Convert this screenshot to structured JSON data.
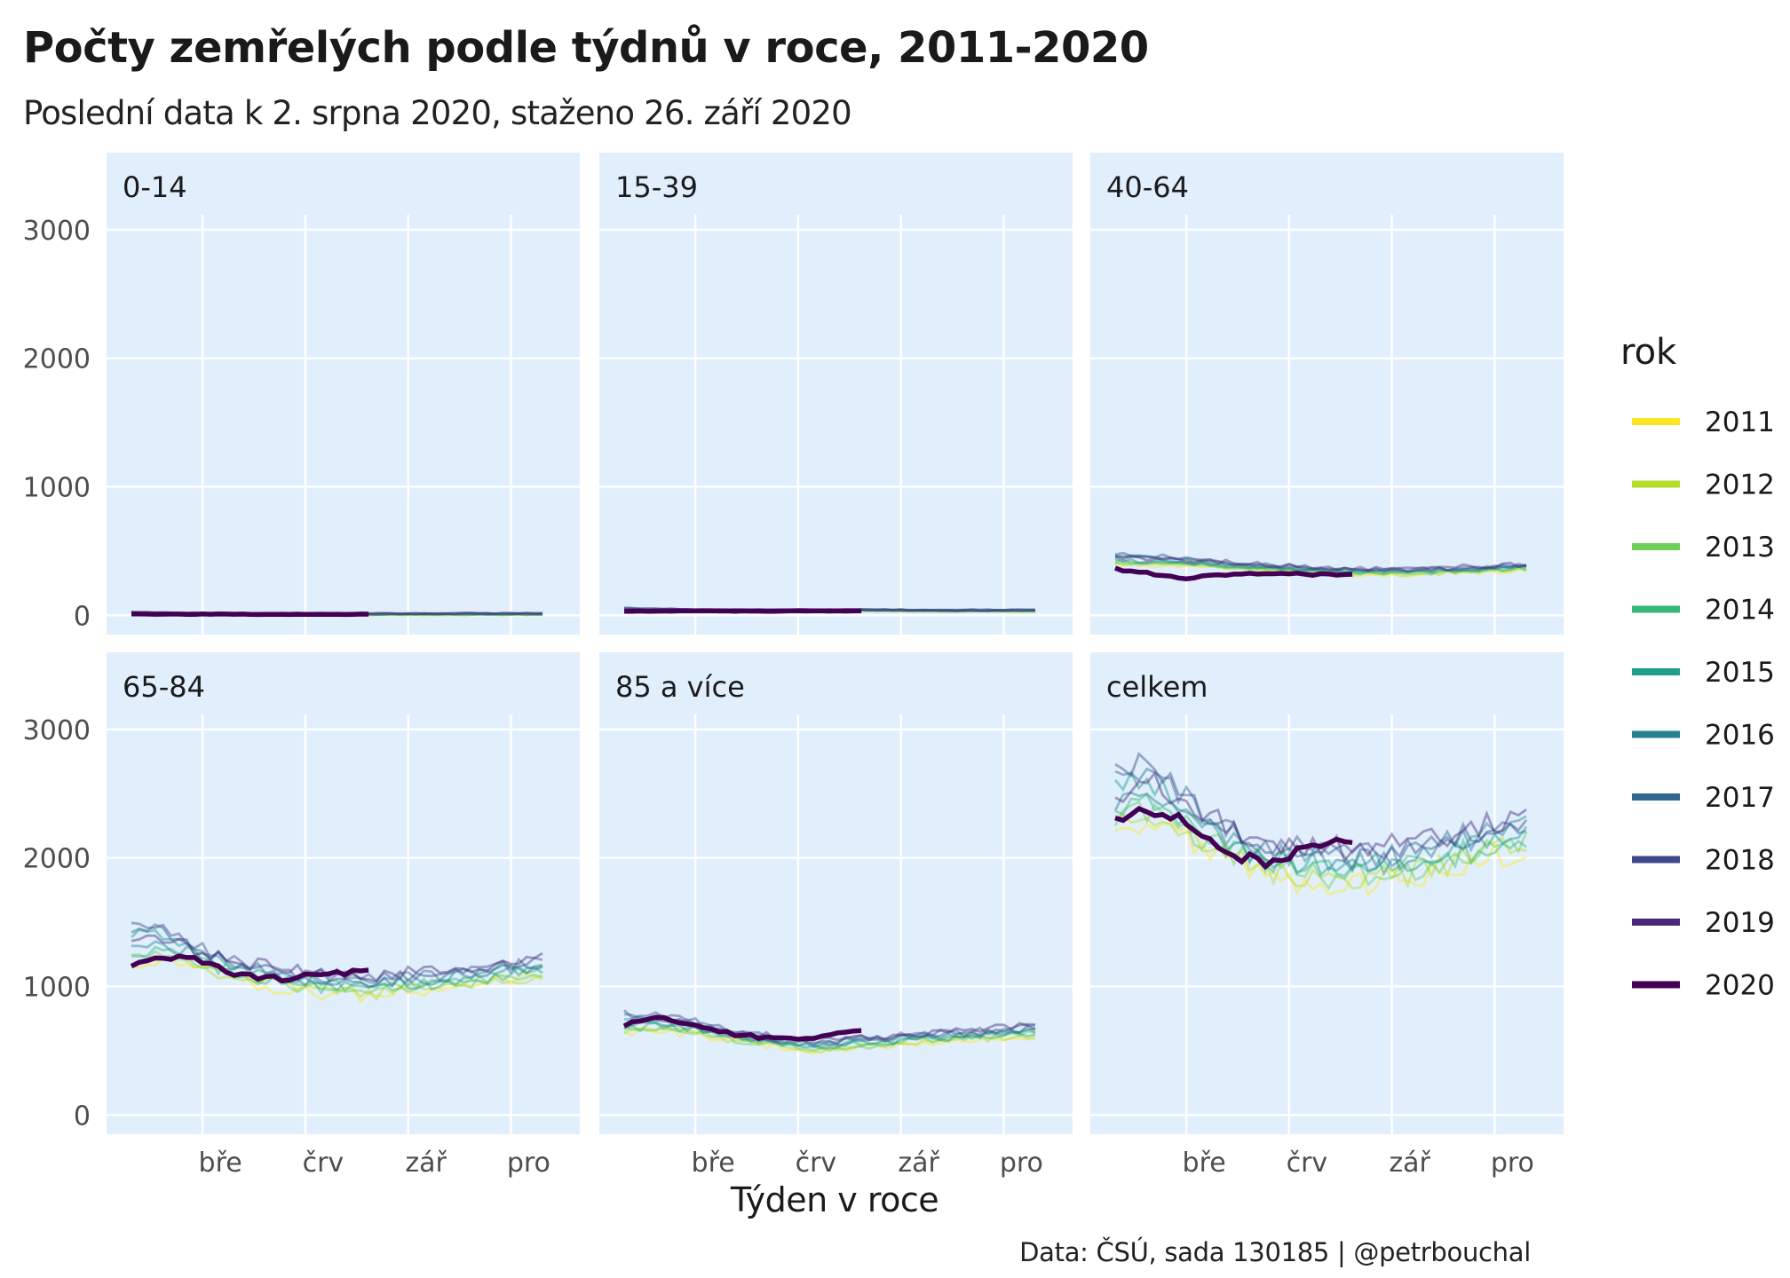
{
  "title": "Počty zemřelých podle týdnů v roce, 2011-2020",
  "subtitle": "Poslední data k 2. srpna 2020, staženo 26. září 2020",
  "caption": "Data: ČSÚ, sada 130185 | @petrbouchal",
  "colors": {
    "panel_bg": "#e1effd",
    "grid": "#ffffff",
    "years": {
      "2011": "#fde725",
      "2012": "#b5de2b",
      "2013": "#6ece58",
      "2014": "#35b779",
      "2015": "#1f9e89",
      "2016": "#26828e",
      "2017": "#31688e",
      "2018": "#3e4989",
      "2019": "#482878",
      "2020": "#440154"
    }
  },
  "chart_data": {
    "type": "line",
    "facet": "age_group",
    "xlabel": "Týden v roce",
    "ylabel": "",
    "x_tick_labels": [
      "bře",
      "črv",
      "zář",
      "pro"
    ],
    "y_ticks": [
      0,
      1000,
      2000,
      3000
    ],
    "ylim": [
      -150,
      3600
    ],
    "legend": {
      "title": "rok",
      "position": "right",
      "entries": [
        "2011",
        "2012",
        "2013",
        "2014",
        "2015",
        "2016",
        "2017",
        "2018",
        "2019",
        "2020"
      ]
    },
    "grid": true,
    "panels": [
      {
        "label": "0-14",
        "x": [
          1,
          10,
          20,
          31,
          40,
          52
        ],
        "series": [
          {
            "name": "2011-2019",
            "values": [
              10,
              10,
              9,
              8,
              9,
              9
            ]
          },
          {
            "name": "2020",
            "values": [
              10,
              9,
              9,
              8
            ]
          }
        ]
      },
      {
        "label": "15-39",
        "x": [
          1,
          10,
          20,
          31,
          40,
          52
        ],
        "series": [
          {
            "name": "2011-2019",
            "values": [
              40,
              38,
              37,
              40,
              36,
              36
            ]
          },
          {
            "name": "2020",
            "values": [
              32,
              33,
              35,
              33
            ]
          }
        ]
      },
      {
        "label": "40-64",
        "x": [
          1,
          10,
          20,
          31,
          40,
          52
        ],
        "series": [
          {
            "name": "2011-2019",
            "values": [
              420,
              410,
              370,
              340,
              340,
              370
            ]
          },
          {
            "name": "2020",
            "values": [
              360,
              330,
              290,
              320
            ]
          }
        ]
      },
      {
        "label": "65-84",
        "x": [
          1,
          5,
          10,
          15,
          20,
          25,
          31,
          40,
          52
        ],
        "series": [
          {
            "name": "2011-2019",
            "values": [
              1250,
              1300,
              1200,
              1120,
              1060,
              1020,
              1000,
              1050,
              1140
            ]
          },
          {
            "name": "2020",
            "values": [
              1180,
              1220,
              1200,
              1080,
              1050,
              1100,
              1120
            ]
          }
        ]
      },
      {
        "label": "85 a více",
        "x": [
          1,
          5,
          10,
          15,
          20,
          25,
          31,
          40,
          52
        ],
        "series": [
          {
            "name": "2011-2019",
            "values": [
              680,
              700,
              670,
              610,
              570,
              540,
              560,
              600,
              650
            ]
          },
          {
            "name": "2020",
            "values": [
              700,
              760,
              700,
              620,
              600,
              600,
              650
            ]
          }
        ]
      },
      {
        "label": "celkem",
        "x": [
          1,
          5,
          10,
          15,
          20,
          25,
          31,
          40,
          52
        ],
        "series": [
          {
            "name": "2011-2019",
            "values": [
              2350,
              2450,
              2300,
              2120,
              2000,
              1950,
              1920,
              2000,
              2200
            ]
          },
          {
            "name": "2020",
            "values": [
              2300,
              2370,
              2280,
              2050,
              1950,
              2050,
              2150
            ]
          }
        ]
      }
    ]
  }
}
